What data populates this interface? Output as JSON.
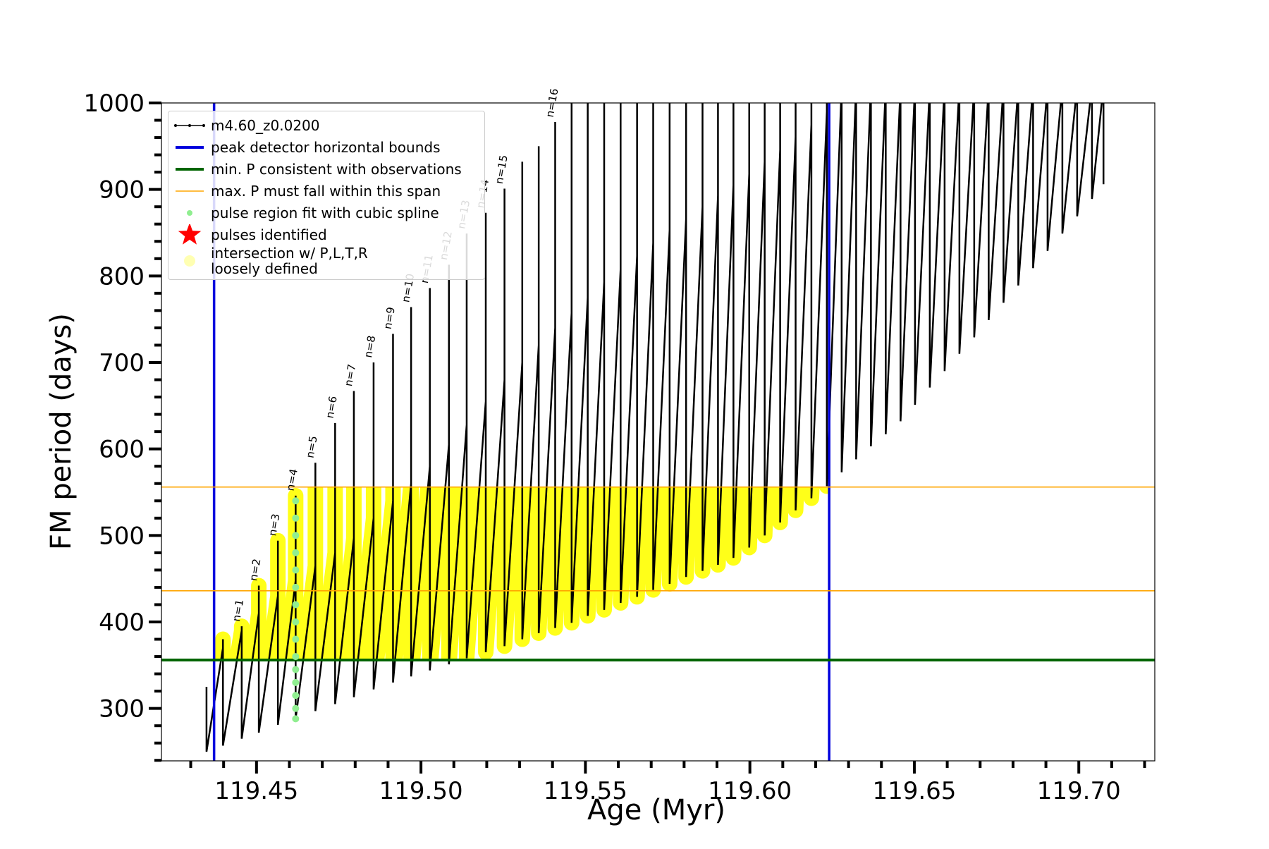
{
  "chart_data": {
    "type": "line",
    "xlabel": "Age (Myr)",
    "ylabel": "FM period (days)",
    "xlim": [
      119.4211,
      119.7231
    ],
    "ylim": [
      239.4,
      1000
    ],
    "xticks": [
      119.45,
      {
        "value": 119.5,
        "label": "119.50"
      },
      119.55,
      {
        "value": 119.6,
        "label": "119.60"
      },
      119.65,
      {
        "value": 119.7,
        "label": "119.70"
      }
    ],
    "xminorticks": [
      119.43,
      119.44,
      119.46,
      119.47,
      119.48,
      119.49,
      119.51,
      119.52,
      119.53,
      119.54,
      119.56,
      119.57,
      119.58,
      119.59,
      119.61,
      119.62,
      119.63,
      119.64,
      119.66,
      119.67,
      119.68,
      119.69,
      119.71,
      119.72
    ],
    "yticks": [
      300,
      400,
      500,
      600,
      700,
      800,
      900,
      1000
    ],
    "yminorticks": [
      240,
      260,
      280,
      320,
      340,
      360,
      380,
      420,
      440,
      460,
      480,
      520,
      540,
      560,
      580,
      620,
      640,
      660,
      680,
      720,
      740,
      760,
      780,
      820,
      840,
      860,
      880,
      920,
      940,
      960,
      980
    ],
    "series": [
      {
        "name": "m4.60_z0.0200",
        "color": "#000000",
        "style": "line-dots",
        "x": [
          119.4348,
          119.4348,
          119.4348,
          119.4398,
          119.4398,
          119.4398,
          119.4455,
          119.4455,
          119.4455,
          119.4507,
          119.4507,
          119.4507,
          119.4565,
          119.4565,
          119.4565,
          119.4619,
          119.4619,
          119.4619,
          119.4679,
          119.4679,
          119.4679,
          119.4739,
          119.4739,
          119.4739,
          119.4796,
          119.4796,
          119.4796,
          119.4856,
          119.4856,
          119.4856,
          119.4915,
          119.4915,
          119.4915,
          119.497,
          119.497,
          119.497,
          119.5027,
          119.5027,
          119.5027,
          119.5085,
          119.5085,
          119.5085,
          119.5139,
          119.5139,
          119.5139,
          119.5197,
          119.5197,
          119.5197,
          119.5254,
          119.5254,
          119.5254,
          119.5308,
          119.5308,
          119.5308,
          119.5358,
          119.5358,
          119.5358,
          119.5408,
          119.5408,
          119.5408,
          119.5458,
          119.5458,
          119.5458,
          119.5507,
          119.5507,
          119.5507,
          119.5557,
          119.5557,
          119.5557,
          119.5607,
          119.5607,
          119.5607,
          119.5657,
          119.5657,
          119.5657,
          119.5706,
          119.5706,
          119.5706,
          119.5756,
          119.5756,
          119.5756,
          119.5806,
          119.5806,
          119.5806,
          119.5856,
          119.5856,
          119.5856,
          119.5903,
          119.5903,
          119.5903,
          119.595,
          119.595,
          119.595,
          119.5998,
          119.5998,
          119.5998,
          119.6045,
          119.6045,
          119.6045,
          119.6092,
          119.6092,
          119.6092,
          119.6139,
          119.6139,
          119.6139,
          119.6187,
          119.6187,
          119.6187,
          119.6234,
          119.6234,
          119.6234,
          119.6279,
          119.6279,
          119.6279,
          119.6323,
          119.6323,
          119.6323,
          119.6368,
          119.6368,
          119.6368,
          119.6413,
          119.6413,
          119.6413,
          119.6458,
          119.6458,
          119.6458,
          119.6502,
          119.6502,
          119.6502,
          119.6547,
          119.6547,
          119.6547,
          119.6592,
          119.6592,
          119.6592,
          119.6637,
          119.6637,
          119.6637,
          119.6682,
          119.6682,
          119.6682,
          119.6726,
          119.6726,
          119.6726,
          119.6771,
          119.6771,
          119.6771,
          119.6816,
          119.6816,
          119.6816,
          119.6861,
          119.6861,
          119.6861,
          119.6905,
          119.6905,
          119.6905,
          119.695,
          119.695,
          119.695,
          119.6995,
          119.6995,
          119.6995,
          119.704,
          119.704,
          119.704,
          119.7075,
          119.7075,
          119.7075
        ],
        "values": [
          325,
          325,
          250,
          370,
          380,
          257,
          390,
          395,
          265,
          410,
          442,
          272,
          430,
          494,
          281,
          448,
          546,
          288,
          465,
          584,
          297,
          480,
          630,
          305,
          497,
          667,
          313,
          520,
          700,
          322,
          540,
          733,
          330,
          560,
          764,
          337,
          580,
          786,
          344,
          605,
          813,
          351,
          628,
          849,
          358,
          655,
          873,
          365,
          680,
          901,
          372,
          700,
          932,
          380,
          720,
          950,
          387,
          740,
          978,
          393,
          757,
          1050,
          399,
          775,
          1050,
          407,
          793,
          1050,
          414,
          808,
          1050,
          422,
          823,
          1050,
          429,
          838,
          1050,
          437,
          853,
          1050,
          444,
          866,
          1050,
          452,
          880,
          1050,
          459,
          893,
          1050,
          466,
          905,
          1050,
          474,
          918,
          1050,
          486,
          932,
          1050,
          500,
          946,
          1050,
          515,
          961,
          1050,
          529,
          975,
          1050,
          543,
          990,
          1050,
          557,
          1020,
          1050,
          573,
          1020,
          1050,
          588,
          1020,
          1050,
          603,
          1020,
          1050,
          617,
          1020,
          1050,
          632,
          1020,
          1050,
          651,
          1020,
          1050,
          671,
          1020,
          1050,
          690,
          1020,
          1050,
          710,
          1020,
          1050,
          729,
          1020,
          1050,
          749,
          1020,
          1050,
          769,
          1020,
          1050,
          789,
          1020,
          1050,
          809,
          1020,
          1050,
          829,
          1020,
          1050,
          849,
          1020,
          1050,
          869,
          1020,
          1050,
          889,
          1020,
          1050,
          906
        ]
      },
      {
        "name": "peak detector horizontal bounds",
        "color": "#0000dd",
        "style": "vline",
        "xvalues": [
          119.4371,
          119.6241
        ]
      },
      {
        "name": "min. P consistent with observations",
        "color": "#006400",
        "style": "hline-thick",
        "yvalues": [
          356
        ]
      },
      {
        "name": "max. P must fall within this span",
        "color": "#ffa500",
        "style": "hline-thin",
        "yvalues": [
          436,
          556
        ]
      },
      {
        "name": "pulse region fit with cubic spline",
        "color": "#90ee90",
        "style": "dots",
        "x": [
          119.4619,
          119.4619,
          119.4619,
          119.4619,
          119.4619,
          119.4619,
          119.4619,
          119.4619,
          119.4619,
          119.4619,
          119.4619,
          119.4619,
          119.4619,
          119.4619,
          119.4619
        ],
        "values": [
          288,
          300,
          315,
          330,
          345,
          360,
          380,
          400,
          420,
          440,
          460,
          480,
          500,
          520,
          540
        ]
      },
      {
        "name": "pulses identified",
        "color": "#ff0000",
        "style": "star",
        "x": [],
        "values": []
      },
      {
        "name": "intersection w/ P,L,T,R\nloosely defined",
        "color": "#ffff00",
        "style": "circle"
      }
    ],
    "annotations": [
      {
        "text": "n=1",
        "x": 119.4455,
        "y": 395
      },
      {
        "text": "n=2",
        "x": 119.4507,
        "y": 442
      },
      {
        "text": "n=3",
        "x": 119.4565,
        "y": 494
      },
      {
        "text": "n=4",
        "x": 119.4619,
        "y": 546
      },
      {
        "text": "n=5",
        "x": 119.4679,
        "y": 584
      },
      {
        "text": "n=6",
        "x": 119.4739,
        "y": 630
      },
      {
        "text": "n=7",
        "x": 119.4796,
        "y": 667
      },
      {
        "text": "n=8",
        "x": 119.4856,
        "y": 700
      },
      {
        "text": "n=9",
        "x": 119.4915,
        "y": 733
      },
      {
        "text": "n=10",
        "x": 119.497,
        "y": 764
      },
      {
        "text": "n=11",
        "x": 119.5027,
        "y": 786
      },
      {
        "text": "n=12",
        "x": 119.5085,
        "y": 813
      },
      {
        "text": "n=13",
        "x": 119.5139,
        "y": 849
      },
      {
        "text": "n=14",
        "x": 119.5197,
        "y": 873
      },
      {
        "text": "n=15",
        "x": 119.5254,
        "y": 901
      },
      {
        "text": "n=16",
        "x": 119.5408,
        "y": 978
      }
    ]
  }
}
